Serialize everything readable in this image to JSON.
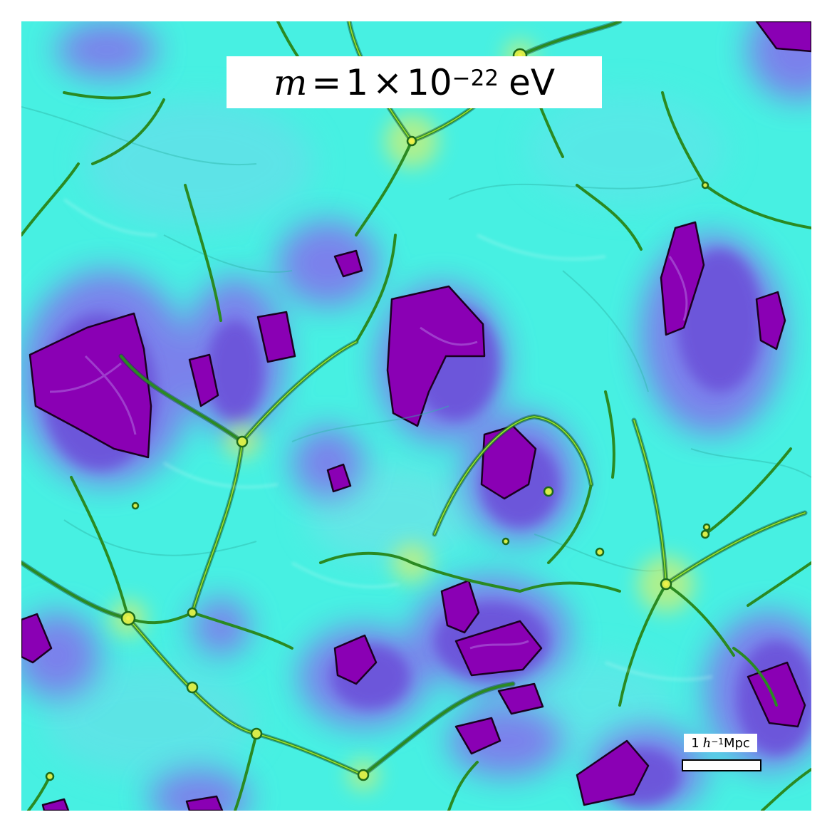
{
  "title": {
    "symbol": "m",
    "equals": "=",
    "coefficient": "1",
    "times": "×",
    "base": "10",
    "exponent": "−22",
    "unit": "eV"
  },
  "scale_bar": {
    "value": "1",
    "h": "h",
    "exponent": "−1",
    "unit": "Mpc"
  },
  "colors": {
    "background": "#47f0e2",
    "filament": "#2b8a1e",
    "filament_highlight": "#c8e83a",
    "node": "#e8f040",
    "void_edge": "#7a6ae6",
    "void_core": "#8a00b4",
    "void_outline": "#1a0020"
  }
}
